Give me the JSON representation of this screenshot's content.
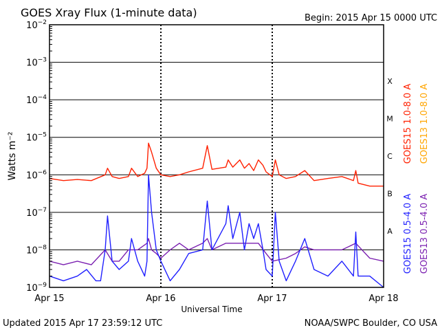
{
  "header": {
    "title": "GOES Xray Flux (1-minute data)",
    "begin_label": "Begin:  2015 Apr 15 0000 UTC"
  },
  "footer": {
    "updated": "Updated 2015 Apr 17 23:59:12 UTC",
    "credit": "NOAA/SWPC Boulder, CO USA"
  },
  "colors": {
    "goes15_long": "#ff2000",
    "goes13_long": "#ffa500",
    "goes15_short": "#1f1fff",
    "goes13_short": "#7a1fb0",
    "grid": "#000000",
    "frame": "#000000"
  },
  "chart_data": {
    "type": "line",
    "title": "GOES Xray Flux (1-minute data)",
    "xlabel": "Universal Time",
    "ylabel": "Watts m⁻²",
    "yscale": "log",
    "ylim": [
      1e-09,
      0.01
    ],
    "xlim": [
      "2015-04-15T00:00",
      "2015-04-18T00:00"
    ],
    "x_ticks": [
      "Apr 15",
      "Apr 16",
      "Apr 17",
      "Apr 18"
    ],
    "y_ticks": [
      {
        "value": 0.01,
        "label": "10^-2"
      },
      {
        "value": 0.001,
        "label": "10^-3"
      },
      {
        "value": 0.0001,
        "label": "10^-4"
      },
      {
        "value": 1e-05,
        "label": "10^-5"
      },
      {
        "value": 1e-06,
        "label": "10^-6"
      },
      {
        "value": 1e-07,
        "label": "10^-7"
      },
      {
        "value": 1e-08,
        "label": "10^-8"
      },
      {
        "value": 1e-09,
        "label": "10^-9"
      }
    ],
    "flare_classes": [
      {
        "label": "X",
        "value": 0.0001
      },
      {
        "label": "M",
        "value": 1e-05
      },
      {
        "label": "C",
        "value": 1e-06
      },
      {
        "label": "B",
        "value": 1e-07
      },
      {
        "label": "A",
        "value": 1e-08
      }
    ],
    "legend": [
      "GOES15 1.0-8.0 A",
      "GOES13 1.0-8.0 A",
      "GOES15 0.5-4.0 A",
      "GOES13 0.5-4.0 A"
    ],
    "grid": true,
    "series": [
      {
        "name": "GOES15 1.0-8.0 A",
        "color": "#ff2000",
        "x": [
          "2015-04-15T00:00",
          "2015-04-15T03:00",
          "2015-04-15T06:00",
          "2015-04-15T09:00",
          "2015-04-15T12:00",
          "2015-04-15T12:30",
          "2015-04-15T13:30",
          "2015-04-15T15:00",
          "2015-04-15T17:00",
          "2015-04-15T17:40",
          "2015-04-15T19:00",
          "2015-04-15T20:30",
          "2015-04-15T21:00",
          "2015-04-15T21:20",
          "2015-04-15T22:00",
          "2015-04-15T23:00",
          "2015-04-16T00:00",
          "2015-04-16T02:00",
          "2015-04-16T04:00",
          "2015-04-16T06:00",
          "2015-04-16T09:00",
          "2015-04-16T10:00",
          "2015-04-16T11:00",
          "2015-04-16T14:00",
          "2015-04-16T14:30",
          "2015-04-16T15:30",
          "2015-04-16T17:00",
          "2015-04-16T18:00",
          "2015-04-16T19:00",
          "2015-04-16T20:00",
          "2015-04-16T21:00",
          "2015-04-16T22:00",
          "2015-04-16T22:40",
          "2015-04-17T00:00",
          "2015-04-17T00:40",
          "2015-04-17T01:30",
          "2015-04-17T03:00",
          "2015-04-17T05:00",
          "2015-04-17T07:00",
          "2015-04-17T09:00",
          "2015-04-17T12:00",
          "2015-04-17T15:00",
          "2015-04-17T17:30",
          "2015-04-17T18:00",
          "2015-04-17T18:30",
          "2015-04-17T21:00",
          "2015-04-17T23:59"
        ],
        "y": [
          8e-07,
          7e-07,
          7.5e-07,
          7e-07,
          1e-06,
          1.5e-06,
          9e-07,
          8e-07,
          9e-07,
          1.5e-06,
          9e-07,
          1.1e-06,
          1.5e-06,
          7e-06,
          4e-06,
          1.5e-06,
          1e-06,
          9e-07,
          1e-06,
          1.2e-06,
          1.5e-06,
          6e-06,
          1.4e-06,
          1.6e-06,
          2.5e-06,
          1.6e-06,
          2.5e-06,
          1.5e-06,
          2e-06,
          1.3e-06,
          2.5e-06,
          1.8e-06,
          1.2e-06,
          9e-07,
          2.5e-06,
          1e-06,
          8e-07,
          9e-07,
          1.3e-06,
          7e-07,
          8e-07,
          9e-07,
          7e-07,
          1.3e-06,
          6e-07,
          5e-07,
          5e-07
        ]
      },
      {
        "name": "GOES15 0.5-4.0 A",
        "color": "#1f1fff",
        "x": [
          "2015-04-15T00:00",
          "2015-04-15T03:00",
          "2015-04-15T06:00",
          "2015-04-15T08:00",
          "2015-04-15T10:00",
          "2015-04-15T11:00",
          "2015-04-15T12:00",
          "2015-04-15T12:30",
          "2015-04-15T13:30",
          "2015-04-15T15:00",
          "2015-04-15T17:00",
          "2015-04-15T17:40",
          "2015-04-15T19:00",
          "2015-04-15T20:30",
          "2015-04-15T21:00",
          "2015-04-15T21:20",
          "2015-04-15T22:00",
          "2015-04-15T23:00",
          "2015-04-16T00:00",
          "2015-04-16T02:00",
          "2015-04-16T04:00",
          "2015-04-16T06:00",
          "2015-04-16T09:00",
          "2015-04-16T10:00",
          "2015-04-16T11:00",
          "2015-04-16T14:00",
          "2015-04-16T14:30",
          "2015-04-16T15:30",
          "2015-04-16T17:00",
          "2015-04-16T18:00",
          "2015-04-16T19:00",
          "2015-04-16T20:00",
          "2015-04-16T21:00",
          "2015-04-16T22:00",
          "2015-04-16T22:40",
          "2015-04-17T00:00",
          "2015-04-17T00:40",
          "2015-04-17T01:30",
          "2015-04-17T03:00",
          "2015-04-17T05:00",
          "2015-04-17T07:00",
          "2015-04-17T09:00",
          "2015-04-17T12:00",
          "2015-04-17T15:00",
          "2015-04-17T17:30",
          "2015-04-17T18:00",
          "2015-04-17T18:30",
          "2015-04-17T21:00",
          "2015-04-17T23:59"
        ],
        "y": [
          2e-09,
          1.5e-09,
          2e-09,
          3e-09,
          1.5e-09,
          1.5e-09,
          1e-08,
          8e-08,
          5e-09,
          3e-09,
          5e-09,
          2e-08,
          5e-09,
          2e-09,
          5e-09,
          1e-06,
          1e-07,
          1e-08,
          5e-09,
          1.5e-09,
          3e-09,
          8e-09,
          1e-08,
          2e-07,
          1e-08,
          5e-08,
          1.5e-07,
          2e-08,
          1e-07,
          1e-08,
          5e-08,
          2e-08,
          5e-08,
          1e-08,
          3e-09,
          2e-09,
          1e-07,
          5e-09,
          1.5e-09,
          5e-09,
          2e-08,
          3e-09,
          2e-09,
          5e-09,
          2e-09,
          3e-08,
          2e-09,
          2e-09,
          1e-09
        ]
      },
      {
        "name": "GOES13 0.5-4.0 A",
        "color": "#7a1fb0",
        "x": [
          "2015-04-15T00:00",
          "2015-04-15T03:00",
          "2015-04-15T06:00",
          "2015-04-15T09:00",
          "2015-04-15T12:00",
          "2015-04-15T13:30",
          "2015-04-15T15:00",
          "2015-04-15T17:00",
          "2015-04-15T19:00",
          "2015-04-15T21:00",
          "2015-04-15T21:20",
          "2015-04-15T22:00",
          "2015-04-15T23:00",
          "2015-04-16T00:00",
          "2015-04-16T02:00",
          "2015-04-16T04:00",
          "2015-04-16T06:00",
          "2015-04-16T09:00",
          "2015-04-16T10:00",
          "2015-04-16T11:00",
          "2015-04-16T14:00",
          "2015-04-16T17:00",
          "2015-04-16T19:00",
          "2015-04-16T21:00",
          "2015-04-16T22:40",
          "2015-04-17T00:00",
          "2015-04-17T03:00",
          "2015-04-17T05:00",
          "2015-04-17T07:00",
          "2015-04-17T09:00",
          "2015-04-17T12:00",
          "2015-04-17T15:00",
          "2015-04-17T18:00",
          "2015-04-17T21:00",
          "2015-04-17T23:59"
        ],
        "y": [
          5e-09,
          4e-09,
          5e-09,
          4e-09,
          1e-08,
          5e-09,
          5e-09,
          1e-08,
          1e-08,
          1.5e-08,
          2e-08,
          1e-08,
          8e-09,
          6e-09,
          1e-08,
          1.5e-08,
          1e-08,
          1.5e-08,
          2e-08,
          1e-08,
          1.5e-08,
          1.5e-08,
          1.5e-08,
          1.5e-08,
          8e-09,
          5e-09,
          6e-09,
          8e-09,
          1.2e-08,
          1e-08,
          1e-08,
          1e-08,
          1.5e-08,
          6e-09,
          5e-09
        ]
      }
    ]
  }
}
